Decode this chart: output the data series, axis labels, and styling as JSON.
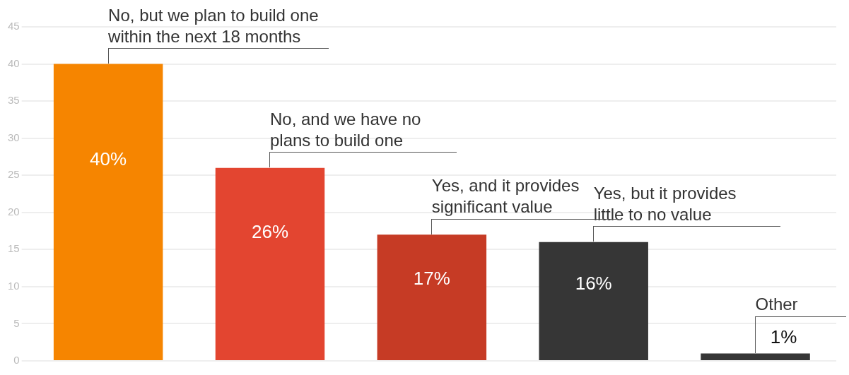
{
  "chart_data": {
    "type": "bar",
    "categories": [
      null,
      null,
      null,
      null,
      null
    ],
    "values": [
      40,
      26,
      17,
      16,
      1
    ],
    "colors": [
      "#f68500",
      "#e34530",
      "#c63b25",
      "#363636",
      "#363636"
    ],
    "value_labels": [
      "40%",
      "26%",
      "17%",
      "16%",
      "1%"
    ],
    "annotations": [
      "No, but we plan to build one within the next 18 months",
      "No, and we have no plans to build one",
      "Yes, and it provides significant value",
      "Yes, but it provides little to no value",
      "Other"
    ],
    "ylim": [
      0,
      45
    ],
    "yticks": [
      0,
      5,
      10,
      15,
      20,
      25,
      30,
      35,
      40,
      45
    ],
    "grid": "y",
    "tick_labels": "y",
    "legend": false
  }
}
